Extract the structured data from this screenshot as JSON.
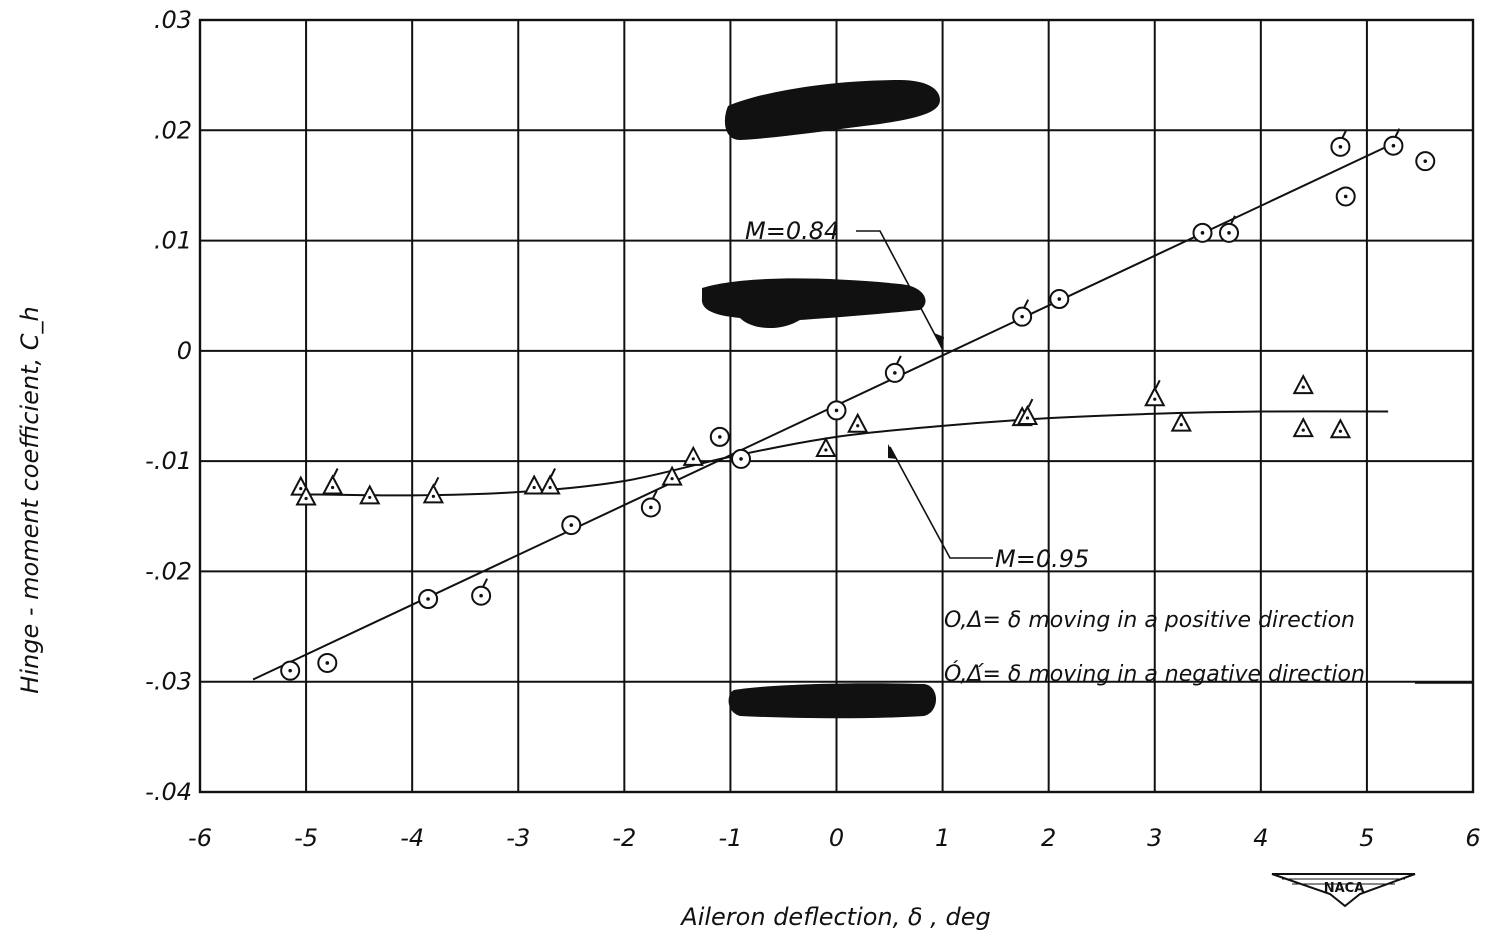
{
  "chart_data": {
    "type": "scatter",
    "xlabel": "Aileron deflection, δ , deg",
    "ylabel": "Hinge - moment coefficient, C_h",
    "xlim": [
      -6,
      6
    ],
    "ylim": [
      -0.04,
      0.03
    ],
    "x_ticks": [
      -6,
      -5,
      -4,
      -3,
      -2,
      -1,
      0,
      1,
      2,
      3,
      4,
      5,
      6
    ],
    "x_tick_labels": [
      "-6",
      "-5",
      "-4",
      "-3",
      "-2",
      "-1",
      "0",
      "1",
      "2",
      "3",
      "4",
      "5",
      "6"
    ],
    "y_ticks": [
      0.03,
      0.02,
      0.01,
      0,
      -0.01,
      -0.02,
      -0.03,
      -0.04
    ],
    "y_tick_labels": [
      ".03",
      ".02",
      ".01",
      "0",
      "-.01",
      "-.02",
      "-.03",
      "-.04"
    ],
    "grid": true,
    "series": [
      {
        "name": "M=0.84",
        "marker": "circle",
        "points": [
          {
            "x": -5.15,
            "y": -0.029,
            "flag": false
          },
          {
            "x": -4.8,
            "y": -0.0283,
            "flag": false
          },
          {
            "x": -3.85,
            "y": -0.0225,
            "flag": false
          },
          {
            "x": -3.35,
            "y": -0.0222,
            "flag": true
          },
          {
            "x": -2.5,
            "y": -0.0158,
            "flag": false
          },
          {
            "x": -1.75,
            "y": -0.0142,
            "flag": true
          },
          {
            "x": -1.1,
            "y": -0.0078,
            "flag": false
          },
          {
            "x": -0.9,
            "y": -0.0098,
            "flag": false
          },
          {
            "x": 0.0,
            "y": -0.0054,
            "flag": false
          },
          {
            "x": 0.55,
            "y": -0.002,
            "flag": true
          },
          {
            "x": 1.75,
            "y": 0.0031,
            "flag": true
          },
          {
            "x": 2.1,
            "y": 0.0047,
            "flag": false
          },
          {
            "x": 3.45,
            "y": 0.0107,
            "flag": false
          },
          {
            "x": 3.7,
            "y": 0.0107,
            "flag": true
          },
          {
            "x": 4.75,
            "y": 0.0185,
            "flag": true
          },
          {
            "x": 4.8,
            "y": 0.014,
            "flag": false
          },
          {
            "x": 5.25,
            "y": 0.0186,
            "flag": true
          },
          {
            "x": 5.55,
            "y": 0.0172,
            "flag": false
          }
        ],
        "fit_curve": [
          [
            -5.5,
            -0.0298
          ],
          [
            5.25,
            0.0188
          ]
        ]
      },
      {
        "name": "M=0.95",
        "marker": "triangle",
        "points": [
          {
            "x": -5.05,
            "y": -0.0124,
            "flag": false
          },
          {
            "x": -5.0,
            "y": -0.0133,
            "flag": false
          },
          {
            "x": -4.75,
            "y": -0.0123,
            "flag": true
          },
          {
            "x": -4.4,
            "y": -0.0132,
            "flag": false
          },
          {
            "x": -3.8,
            "y": -0.0131,
            "flag": true
          },
          {
            "x": -2.85,
            "y": -0.0123,
            "flag": false
          },
          {
            "x": -2.7,
            "y": -0.0123,
            "flag": true
          },
          {
            "x": -1.55,
            "y": -0.0115,
            "flag": false
          },
          {
            "x": -1.35,
            "y": -0.0097,
            "flag": false
          },
          {
            "x": -0.1,
            "y": -0.0089,
            "flag": false
          },
          {
            "x": 0.2,
            "y": -0.0067,
            "flag": false
          },
          {
            "x": 1.75,
            "y": -0.0061,
            "flag": false
          },
          {
            "x": 1.8,
            "y": -0.006,
            "flag": true
          },
          {
            "x": 3.0,
            "y": -0.0043,
            "flag": true
          },
          {
            "x": 3.25,
            "y": -0.0066,
            "flag": false
          },
          {
            "x": 4.4,
            "y": -0.0032,
            "flag": false
          },
          {
            "x": 4.4,
            "y": -0.0071,
            "flag": false
          },
          {
            "x": 4.75,
            "y": -0.0072,
            "flag": false
          }
        ],
        "fit_curve": [
          [
            -5.1,
            -0.013
          ],
          [
            -4.0,
            -0.0131
          ],
          [
            -3.0,
            -0.0128
          ],
          [
            -2.0,
            -0.0118
          ],
          [
            -1.0,
            -0.0096
          ],
          [
            0.0,
            -0.0078
          ],
          [
            1.0,
            -0.0068
          ],
          [
            2.0,
            -0.0061
          ],
          [
            3.0,
            -0.0057
          ],
          [
            4.0,
            -0.0055
          ],
          [
            5.2,
            -0.0055
          ]
        ]
      }
    ],
    "annotations": [
      {
        "text": "M=0.84",
        "target": [
          1.0,
          0.0
        ]
      },
      {
        "text": "M=0.95",
        "target": [
          0.45,
          -0.0082
        ]
      }
    ],
    "legend": {
      "placement": "lower-right",
      "entries": [
        "O,Δ= δ moving in a positive direction",
        "Ó,Δ́= δ moving in a negative direction"
      ]
    },
    "logo": "NACA"
  }
}
